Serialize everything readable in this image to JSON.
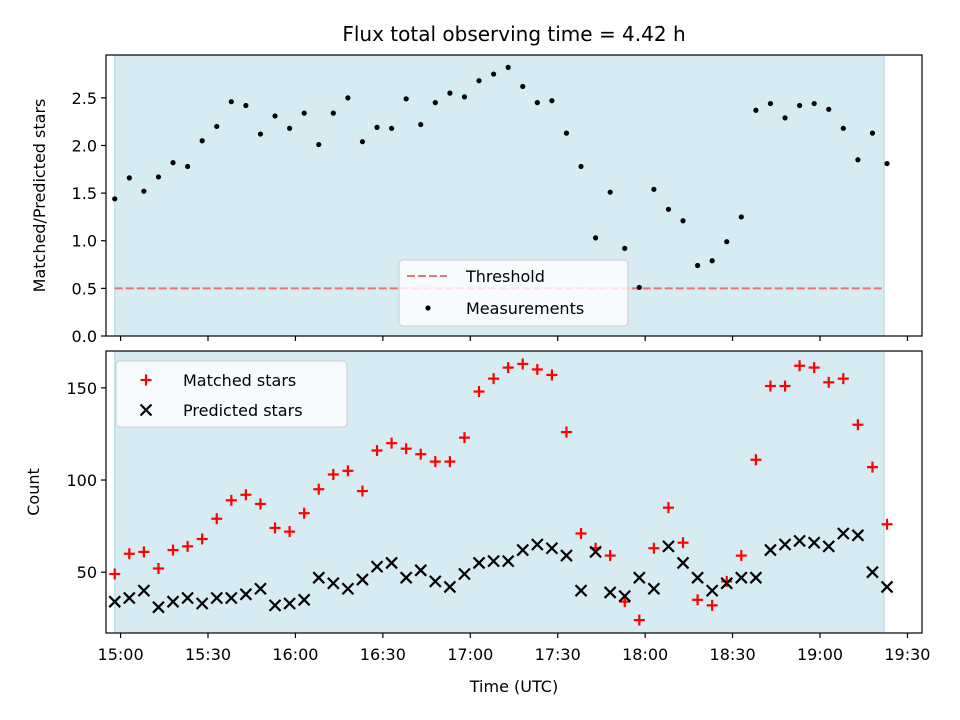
{
  "chart_data": [
    {
      "type": "scatter",
      "title": "Flux total observing time = 4.42 h",
      "xlabel": "",
      "ylabel": "Matched/Predicted stars",
      "xlim": [
        "14:55",
        "19:35"
      ],
      "ylim": [
        0,
        2.95
      ],
      "yticks": [
        0.0,
        0.5,
        1.0,
        1.5,
        2.0,
        2.5
      ],
      "ytick_labels": [
        "0.0",
        "0.5",
        "1.0",
        "1.5",
        "2.0",
        "2.5"
      ],
      "shaded_span": [
        "14:58",
        "19:22"
      ],
      "shade_color": "#add8e6",
      "legend_position": "lower center",
      "threshold": {
        "name": "Threshold",
        "value": 0.5,
        "color": "#e87474",
        "style": "dashed"
      },
      "series": [
        {
          "name": "Measurements",
          "marker": "dot",
          "color": "#000000",
          "x": [
            "14:58",
            "15:03",
            "15:08",
            "15:13",
            "15:18",
            "15:23",
            "15:28",
            "15:33",
            "15:38",
            "15:43",
            "15:48",
            "15:53",
            "15:58",
            "16:03",
            "16:08",
            "16:13",
            "16:18",
            "16:23",
            "16:28",
            "16:33",
            "16:38",
            "16:43",
            "16:48",
            "16:53",
            "16:58",
            "17:03",
            "17:08",
            "17:13",
            "17:18",
            "17:23",
            "17:28",
            "17:33",
            "17:38",
            "17:43",
            "17:48",
            "17:53",
            "17:58",
            "18:03",
            "18:08",
            "18:13",
            "18:18",
            "18:23",
            "18:28",
            "18:33",
            "18:38",
            "18:43",
            "18:48",
            "18:53",
            "18:58",
            "19:03",
            "19:08",
            "19:13",
            "19:18",
            "19:23"
          ],
          "y": [
            1.44,
            1.66,
            1.52,
            1.67,
            1.82,
            1.78,
            2.05,
            2.2,
            2.46,
            2.42,
            2.12,
            2.31,
            2.18,
            2.34,
            2.01,
            2.34,
            2.5,
            2.04,
            2.19,
            2.18,
            2.49,
            2.22,
            2.45,
            2.55,
            2.51,
            2.68,
            2.75,
            2.82,
            2.62,
            2.45,
            2.47,
            2.13,
            1.78,
            1.03,
            1.51,
            0.92,
            0.51,
            1.54,
            1.33,
            1.21,
            0.74,
            0.79,
            0.99,
            1.25,
            2.37,
            2.44,
            2.29,
            2.42,
            2.44,
            2.38,
            2.18,
            1.85,
            2.13,
            1.81
          ]
        }
      ]
    },
    {
      "type": "scatter",
      "title": "",
      "xlabel": "Time (UTC)",
      "ylabel": "Count",
      "xlim": [
        "14:55",
        "19:35"
      ],
      "xticks": [
        "15:00",
        "15:30",
        "16:00",
        "16:30",
        "17:00",
        "17:30",
        "18:00",
        "18:30",
        "19:00",
        "19:30"
      ],
      "ylim": [
        17,
        170
      ],
      "yticks": [
        50,
        100,
        150
      ],
      "ytick_labels": [
        "50",
        "100",
        "150"
      ],
      "shaded_span": [
        "14:58",
        "19:22"
      ],
      "shade_color": "#add8e6",
      "legend_position": "top-left",
      "series": [
        {
          "name": "Matched stars",
          "marker": "plus",
          "color": "#ff0000",
          "x": [
            "14:58",
            "15:03",
            "15:08",
            "15:13",
            "15:18",
            "15:23",
            "15:28",
            "15:33",
            "15:38",
            "15:43",
            "15:48",
            "15:53",
            "15:58",
            "16:03",
            "16:08",
            "16:13",
            "16:18",
            "16:23",
            "16:28",
            "16:33",
            "16:38",
            "16:43",
            "16:48",
            "16:53",
            "16:58",
            "17:03",
            "17:08",
            "17:13",
            "17:18",
            "17:23",
            "17:28",
            "17:33",
            "17:38",
            "17:43",
            "17:48",
            "17:53",
            "17:58",
            "18:03",
            "18:08",
            "18:13",
            "18:18",
            "18:23",
            "18:28",
            "18:33",
            "18:38",
            "18:43",
            "18:48",
            "18:53",
            "18:58",
            "19:03",
            "19:08",
            "19:13",
            "19:18",
            "19:23"
          ],
          "y": [
            49,
            60,
            61,
            52,
            62,
            64,
            68,
            79,
            89,
            92,
            87,
            74,
            72,
            82,
            95,
            103,
            105,
            94,
            116,
            120,
            117,
            114,
            110,
            110,
            123,
            148,
            155,
            161,
            163,
            160,
            157,
            126,
            71,
            63,
            59,
            34,
            24,
            63,
            85,
            66,
            35,
            32,
            45,
            59,
            111,
            151,
            151,
            162,
            161,
            153,
            155,
            130,
            107,
            76
          ]
        },
        {
          "name": "Predicted stars",
          "marker": "x",
          "color": "#000000",
          "x": [
            "14:58",
            "15:03",
            "15:08",
            "15:13",
            "15:18",
            "15:23",
            "15:28",
            "15:33",
            "15:38",
            "15:43",
            "15:48",
            "15:53",
            "15:58",
            "16:03",
            "16:08",
            "16:13",
            "16:18",
            "16:23",
            "16:28",
            "16:33",
            "16:38",
            "16:43",
            "16:48",
            "16:53",
            "16:58",
            "17:03",
            "17:08",
            "17:13",
            "17:18",
            "17:23",
            "17:28",
            "17:33",
            "17:38",
            "17:43",
            "17:48",
            "17:53",
            "17:58",
            "18:03",
            "18:08",
            "18:13",
            "18:18",
            "18:23",
            "18:28",
            "18:33",
            "18:38",
            "18:43",
            "18:48",
            "18:53",
            "18:58",
            "19:03",
            "19:08",
            "19:13",
            "19:18",
            "19:23"
          ],
          "y": [
            34,
            36,
            40,
            31,
            34,
            36,
            33,
            36,
            36,
            38,
            41,
            32,
            33,
            35,
            47,
            44,
            41,
            46,
            53,
            55,
            47,
            51,
            45,
            42,
            49,
            55,
            56,
            56,
            62,
            65,
            63,
            59,
            40,
            61,
            39,
            37,
            47,
            41,
            64,
            55,
            47,
            40,
            44,
            47,
            47,
            62,
            65,
            67,
            66,
            64,
            71,
            70,
            50,
            42
          ]
        }
      ]
    }
  ]
}
